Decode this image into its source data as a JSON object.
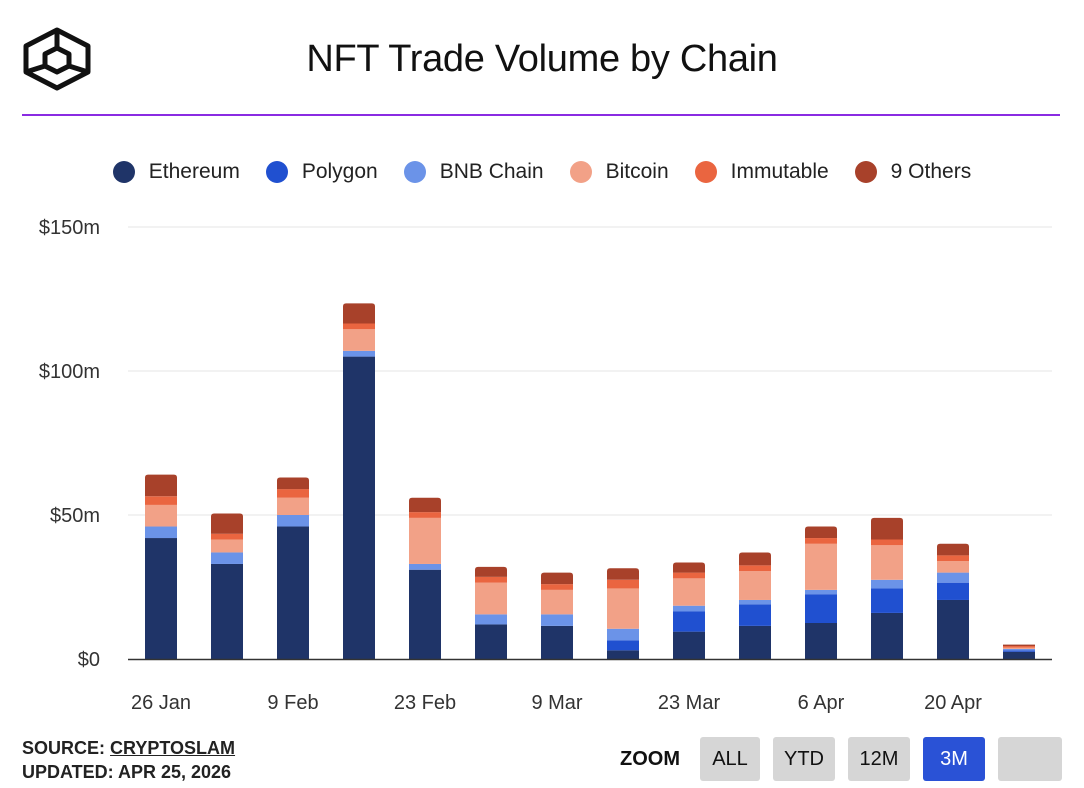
{
  "header": {
    "title": "NFT Trade Volume by Chain"
  },
  "footer": {
    "source_label": "SOURCE:",
    "source_name": "CRYPTOSLAM",
    "updated": "UPDATED: APR 25, 2026"
  },
  "zoom": {
    "label": "ZOOM",
    "buttons": [
      "ALL",
      "YTD",
      "12M",
      "3M",
      ""
    ],
    "active": "3M"
  },
  "colors": {
    "accent_rule": "#8a2be2",
    "zoom_active": "#2a52d6"
  },
  "chart_data": {
    "type": "bar",
    "stacked": true,
    "y_unit": "USD millions",
    "ylim": [
      0,
      150
    ],
    "yticks": [
      0,
      50,
      100,
      150
    ],
    "ytick_labels": [
      "$0",
      "$50m",
      "$100m",
      "$150m"
    ],
    "grid": true,
    "legend_position": "top",
    "x": [
      "2026-01-26",
      "2026-02-02",
      "2026-02-09",
      "2026-02-16",
      "2026-02-23",
      "2026-03-02",
      "2026-03-09",
      "2026-03-16",
      "2026-03-23",
      "2026-03-30",
      "2026-04-06",
      "2026-04-13",
      "2026-04-20",
      "2026-04-27"
    ],
    "xtick_labels": [
      {
        "label": "26 Jan",
        "index": 0
      },
      {
        "label": "9 Feb",
        "index": 2
      },
      {
        "label": "23 Feb",
        "index": 4
      },
      {
        "label": "9 Mar",
        "index": 6
      },
      {
        "label": "23 Mar",
        "index": 8
      },
      {
        "label": "6 Apr",
        "index": 10
      },
      {
        "label": "20 Apr",
        "index": 12
      }
    ],
    "series": [
      {
        "name": "Ethereum",
        "color": "#1f3468",
        "values": [
          42,
          33,
          46,
          105,
          31,
          12,
          11.5,
          3,
          9.5,
          11.5,
          12.5,
          16,
          20.5,
          2.5
        ]
      },
      {
        "name": "Polygon",
        "color": "#2050d0",
        "values": [
          0,
          0,
          0,
          0,
          0,
          0,
          0,
          3.5,
          7,
          7.5,
          10,
          8.5,
          6,
          0.5
        ]
      },
      {
        "name": "BNB Chain",
        "color": "#6b93e8",
        "values": [
          4,
          4,
          4,
          2,
          2,
          3.5,
          4,
          4,
          2,
          1.5,
          1.5,
          3,
          3.5,
          0.5
        ]
      },
      {
        "name": "Bitcoin",
        "color": "#f2a187",
        "values": [
          7.5,
          4.5,
          6,
          7.5,
          16,
          11,
          8.5,
          14,
          9.5,
          10,
          16,
          12,
          4,
          0.5
        ]
      },
      {
        "name": "Immutable",
        "color": "#ea6540",
        "values": [
          3,
          2,
          3,
          2,
          2,
          2,
          2,
          3,
          2,
          2,
          2,
          2,
          2,
          0.5
        ]
      },
      {
        "name": "9 Others",
        "color": "#a8412a",
        "values": [
          7.5,
          7,
          4,
          7,
          5,
          3.5,
          4,
          4,
          3.5,
          4.5,
          4,
          7.5,
          4,
          0.5
        ]
      }
    ]
  }
}
